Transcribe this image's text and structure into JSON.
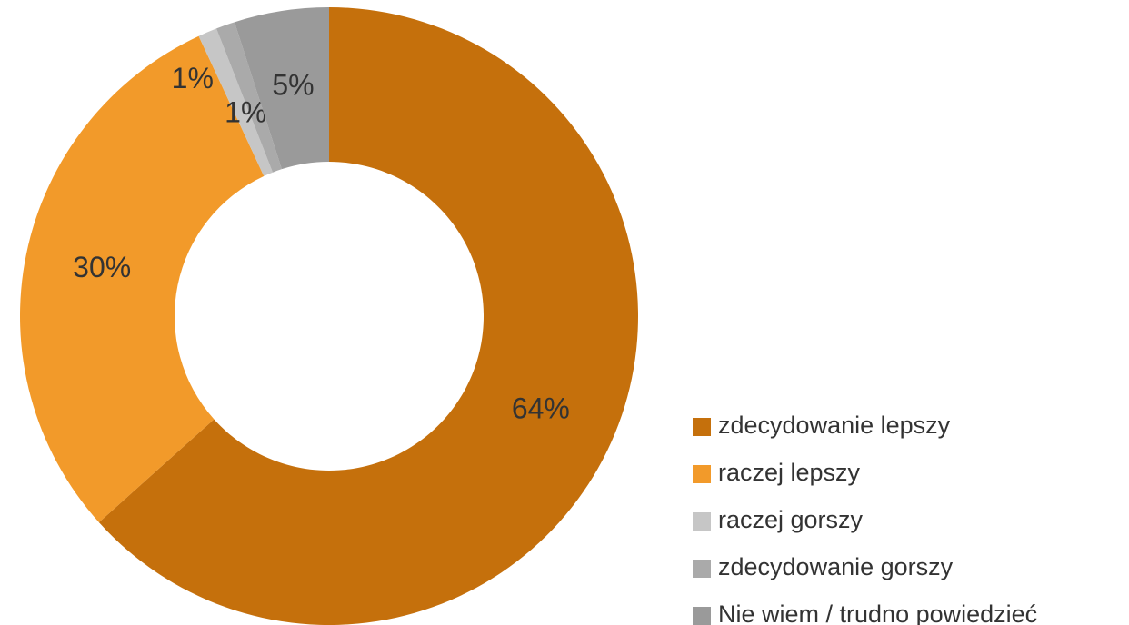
{
  "chart_data": {
    "type": "donut",
    "categories": [
      "zdecydowanie lepszy",
      "raczej lepszy",
      "raczej gorszy",
      "zdecydowanie gorszy",
      "Nie wiem / trudno powiedzieć"
    ],
    "values": [
      64,
      30,
      1,
      1,
      5
    ],
    "value_labels": [
      "64%",
      "30%",
      "1%",
      "1%",
      "5%"
    ],
    "colors": [
      "#c5700c",
      "#f29a2a",
      "#c6c6c6",
      "#aaaaaa",
      "#9a9a9a"
    ],
    "legend": "bottom-right"
  }
}
